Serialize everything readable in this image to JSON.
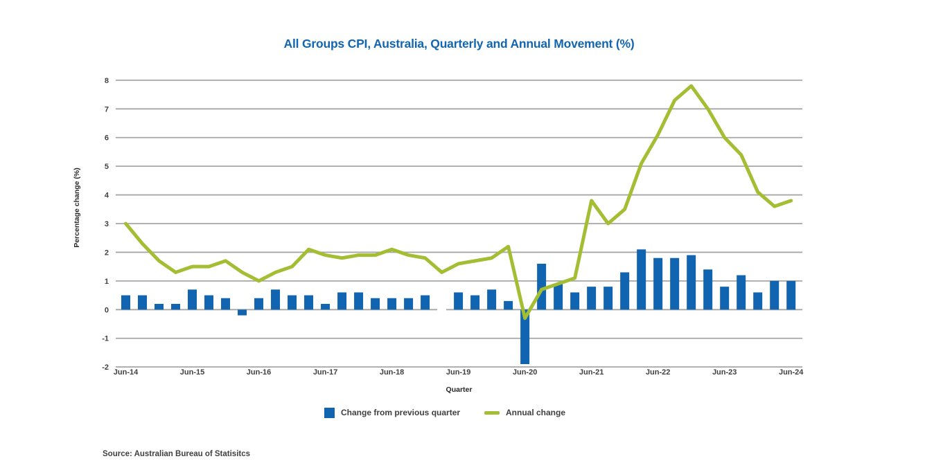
{
  "title": {
    "text": "All Groups CPI, Australia, Quarterly and Annual Movement (%)",
    "color": "#1266B1"
  },
  "source": {
    "text": "Source: Australian Bureau of Statisitcs"
  },
  "chart_data": {
    "type": "bar",
    "subtype": "bar+line combo",
    "title": "All Groups CPI, Australia, Quarterly and Annual Movement (%)",
    "xlabel": "Quarter",
    "ylabel": "Percentage change (%)",
    "ylim": [
      -2,
      8
    ],
    "ytick_step": 1,
    "grid": true,
    "grid_color": "#A6A6A6",
    "tick_color": "#404040",
    "tick_every": 4,
    "legend_position": "bottom",
    "categories": [
      "Jun-14",
      "Sep-14",
      "Dec-14",
      "Mar-15",
      "Jun-15",
      "Sep-15",
      "Dec-15",
      "Mar-16",
      "Jun-16",
      "Sep-16",
      "Dec-16",
      "Mar-17",
      "Jun-17",
      "Sep-17",
      "Dec-17",
      "Mar-18",
      "Jun-18",
      "Sep-18",
      "Dec-18",
      "Mar-19",
      "Jun-19",
      "Sep-19",
      "Dec-19",
      "Mar-20",
      "Jun-20",
      "Sep-20",
      "Dec-20",
      "Mar-21",
      "Jun-21",
      "Sep-21",
      "Dec-21",
      "Mar-22",
      "Jun-22",
      "Sep-22",
      "Dec-22",
      "Mar-23",
      "Jun-23",
      "Sep-23",
      "Dec-23",
      "Mar-24",
      "Jun-24"
    ],
    "series": [
      {
        "name": "Change from previous quarter",
        "type": "bar",
        "color": "#1064B0",
        "values": [
          0.5,
          0.5,
          0.2,
          0.2,
          0.7,
          0.5,
          0.4,
          -0.2,
          0.4,
          0.7,
          0.5,
          0.5,
          0.2,
          0.6,
          0.6,
          0.4,
          0.4,
          0.4,
          0.5,
          0.0,
          0.6,
          0.5,
          0.7,
          0.3,
          -1.9,
          1.6,
          0.9,
          0.6,
          0.8,
          0.8,
          1.3,
          2.1,
          1.8,
          1.8,
          1.9,
          1.4,
          0.8,
          1.2,
          0.6,
          1.0,
          1.0
        ]
      },
      {
        "name": "Annual change",
        "type": "line",
        "color": "#A4BE34",
        "values": [
          3.0,
          2.3,
          1.7,
          1.3,
          1.5,
          1.5,
          1.7,
          1.3,
          1.0,
          1.3,
          1.5,
          2.1,
          1.9,
          1.8,
          1.9,
          1.9,
          2.1,
          1.9,
          1.8,
          1.3,
          1.6,
          1.7,
          1.8,
          2.2,
          -0.3,
          0.7,
          0.9,
          1.1,
          3.8,
          3.0,
          3.5,
          5.1,
          6.1,
          7.3,
          7.8,
          7.0,
          6.0,
          5.4,
          4.1,
          3.6,
          3.8
        ]
      }
    ]
  }
}
